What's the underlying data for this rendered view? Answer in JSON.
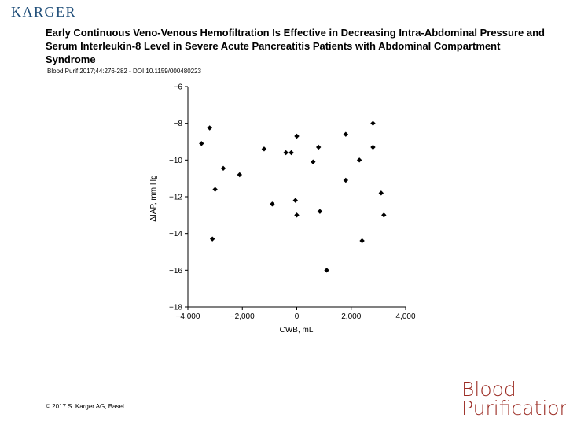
{
  "header": {
    "logo": "KARGER",
    "title": "Early Continuous Veno-Venous Hemofiltration Is Effective in Decreasing Intra-Abdominal Pressure and Serum Interleukin-8 Level in Severe Acute Pancreatitis Patients with Abdominal Compartment Syndrome",
    "citation": "Blood Purif 2017;44:276-282 - DOI:10.1159/000480223"
  },
  "footer": {
    "copyright": "© 2017 S. Karger AG, Basel",
    "journal_line1": "Blood",
    "journal_line2": "Purification"
  },
  "colors": {
    "logo": "#1f4e79",
    "journal": "#9b2b23",
    "markers": "#000000"
  },
  "chart_data": {
    "type": "scatter",
    "title": "",
    "xlabel": "CWB, mL",
    "ylabel": "ΔIAP, mm Hg",
    "xlim": [
      -4000,
      4000
    ],
    "ylim": [
      -18,
      -6
    ],
    "xticks": [
      -4000,
      -2000,
      0,
      2000,
      4000
    ],
    "xtick_labels": [
      "−4,000",
      "−2,000",
      "0",
      "2,000",
      "4,000"
    ],
    "yticks": [
      -6,
      -8,
      -10,
      -12,
      -14,
      -16,
      -18
    ],
    "ytick_labels": [
      "−6",
      "−8",
      "−10",
      "−12",
      "−14",
      "−16",
      "−18"
    ],
    "grid": false,
    "marker": "diamond",
    "series": [
      {
        "points": [
          [
            -3500,
            -9.1
          ],
          [
            -3200,
            -8.25
          ],
          [
            -3100,
            -14.3
          ],
          [
            -3000,
            -11.6
          ],
          [
            -2700,
            -10.45
          ],
          [
            -2100,
            -10.8
          ],
          [
            -1200,
            -9.4
          ],
          [
            -900,
            -12.4
          ],
          [
            -400,
            -9.6
          ],
          [
            -50,
            -12.2
          ],
          [
            0,
            -8.7
          ],
          [
            0,
            -13.0
          ],
          [
            -200,
            -9.6
          ],
          [
            600,
            -10.1
          ],
          [
            800,
            -9.3
          ],
          [
            850,
            -12.8
          ],
          [
            1100,
            -16.0
          ],
          [
            1800,
            -8.6
          ],
          [
            1800,
            -11.1
          ],
          [
            2300,
            -10.0
          ],
          [
            2400,
            -14.4
          ],
          [
            2800,
            -8.0
          ],
          [
            2800,
            -9.3
          ],
          [
            3100,
            -11.8
          ],
          [
            3200,
            -13.0
          ]
        ]
      }
    ]
  }
}
